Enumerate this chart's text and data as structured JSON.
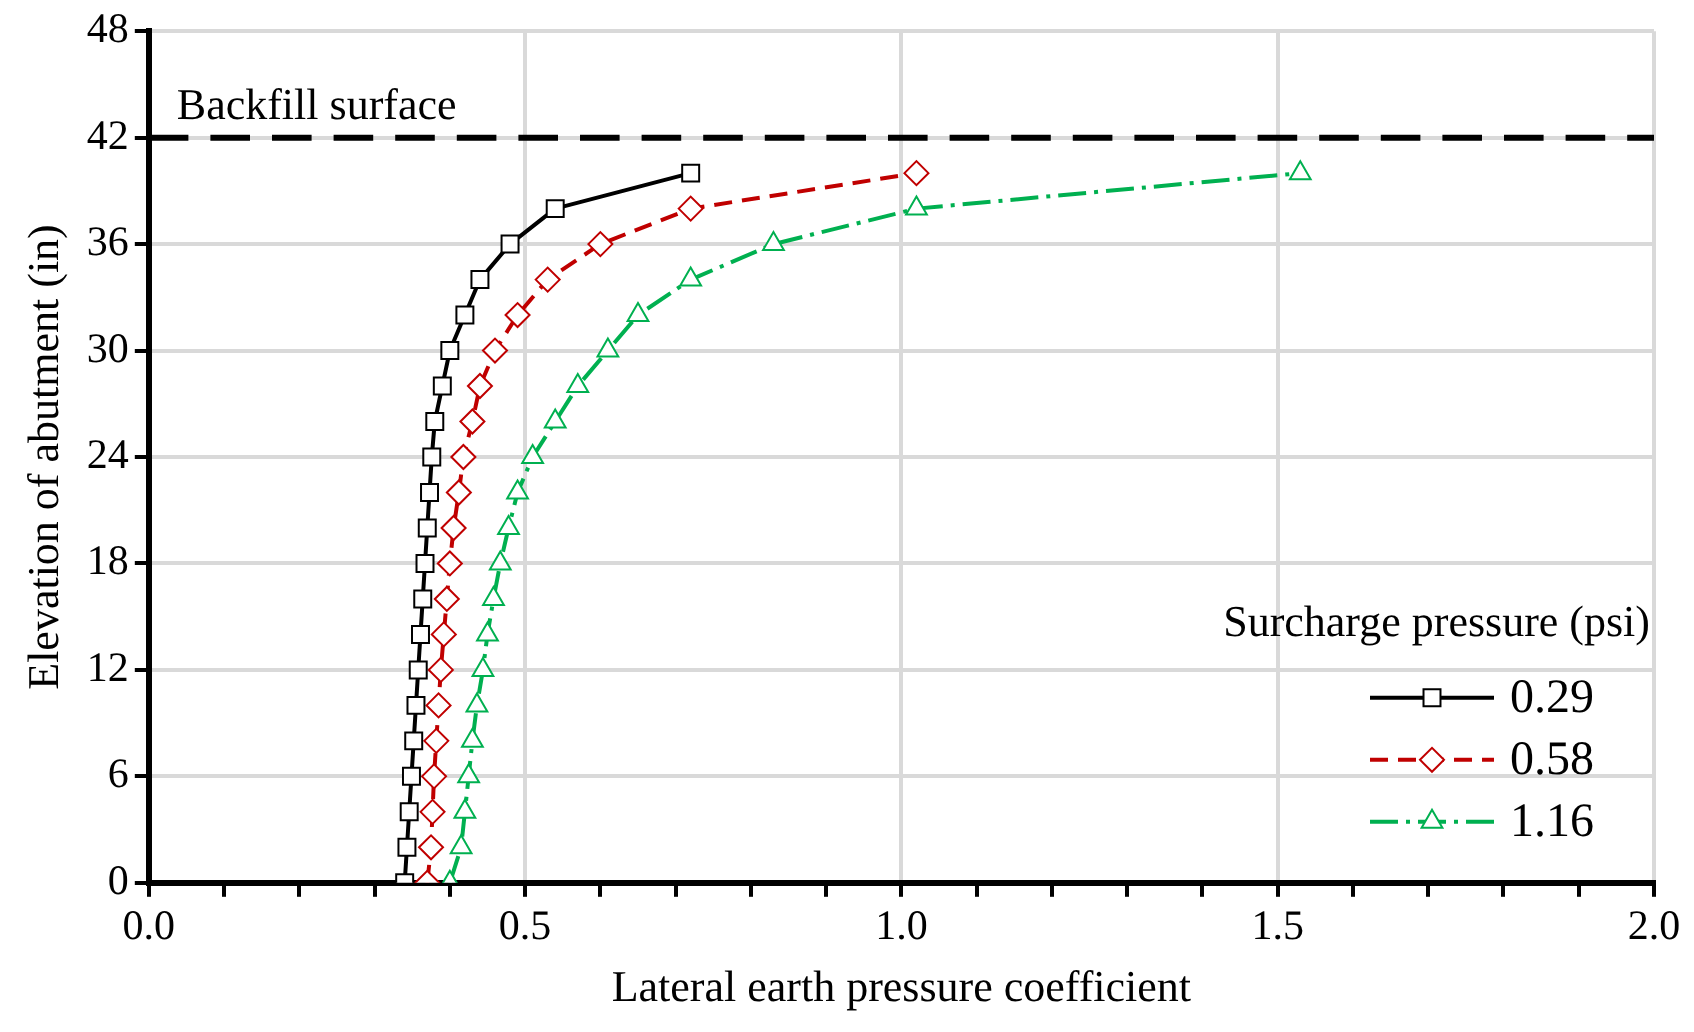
{
  "chart_data": {
    "type": "line",
    "xlabel": "Lateral earth pressure coefficient",
    "ylabel": "Elevation of abutment (in)",
    "legend_title": "Surcharge pressure (psi)",
    "legend": "right",
    "grid": true,
    "xlim": [
      0,
      2
    ],
    "xticks": [
      {
        "value": 0,
        "label": "0.0"
      },
      {
        "value": 0.1,
        "label": null
      },
      {
        "value": 0.2,
        "label": null
      },
      {
        "value": 0.3,
        "label": null
      },
      {
        "value": 0.4,
        "label": null
      },
      {
        "value": 0.5,
        "label": "0.5"
      },
      {
        "value": 0.6,
        "label": null
      },
      {
        "value": 0.7,
        "label": null
      },
      {
        "value": 0.8,
        "label": null
      },
      {
        "value": 0.9,
        "label": null
      },
      {
        "value": 1,
        "label": "1.0"
      },
      {
        "value": 1.1,
        "label": null
      },
      {
        "value": 1.2,
        "label": null
      },
      {
        "value": 1.3,
        "label": null
      },
      {
        "value": 1.4,
        "label": null
      },
      {
        "value": 1.5,
        "label": "1.5"
      },
      {
        "value": 1.6,
        "label": null
      },
      {
        "value": 1.7,
        "label": null
      },
      {
        "value": 1.8,
        "label": null
      },
      {
        "value": 1.9,
        "label": null
      },
      {
        "value": 2,
        "label": "2.0"
      }
    ],
    "ylim": [
      0,
      48
    ],
    "yticks": [
      0,
      6,
      12,
      18,
      24,
      30,
      36,
      42,
      48
    ],
    "ref_lines": [
      {
        "axis": "y",
        "value": 42,
        "label": "Backfill surface",
        "color": "#000000",
        "line_style": "dashed"
      }
    ],
    "series": [
      {
        "name": "0.29",
        "color": "#000000",
        "marker": "square",
        "line_style": "solid",
        "x": [
          0.34,
          0.343,
          0.346,
          0.349,
          0.352,
          0.355,
          0.358,
          0.361,
          0.364,
          0.367,
          0.37,
          0.373,
          0.376,
          0.38,
          0.39,
          0.4,
          0.42,
          0.44,
          0.48,
          0.54,
          0.72
        ],
        "values": [
          0,
          2,
          4,
          6,
          8,
          10,
          12,
          14,
          16,
          18,
          20,
          22,
          24,
          26,
          28,
          30,
          32,
          34,
          36,
          38,
          40
        ]
      },
      {
        "name": "0.58",
        "color": "#c00000",
        "marker": "diamond",
        "line_style": "dashed",
        "x": [
          0.37,
          0.375,
          0.377,
          0.379,
          0.382,
          0.385,
          0.388,
          0.392,
          0.396,
          0.4,
          0.405,
          0.412,
          0.418,
          0.43,
          0.44,
          0.46,
          0.49,
          0.53,
          0.6,
          0.72,
          1.02
        ],
        "values": [
          0,
          2,
          4,
          6,
          8,
          10,
          12,
          14,
          16,
          18,
          20,
          22,
          24,
          26,
          28,
          30,
          32,
          34,
          36,
          38,
          40
        ]
      },
      {
        "name": "1.16",
        "color": "#00b050",
        "marker": "triangle",
        "line_style": "dashdot",
        "x": [
          0.4,
          0.415,
          0.42,
          0.425,
          0.43,
          0.436,
          0.444,
          0.45,
          0.458,
          0.467,
          0.478,
          0.49,
          0.51,
          0.54,
          0.57,
          0.61,
          0.65,
          0.72,
          0.83,
          1.02,
          1.53
        ],
        "values": [
          0,
          2,
          4,
          6,
          8,
          10,
          12,
          14,
          16,
          18,
          20,
          22,
          24,
          26,
          28,
          30,
          32,
          34,
          36,
          38,
          40
        ]
      }
    ]
  }
}
